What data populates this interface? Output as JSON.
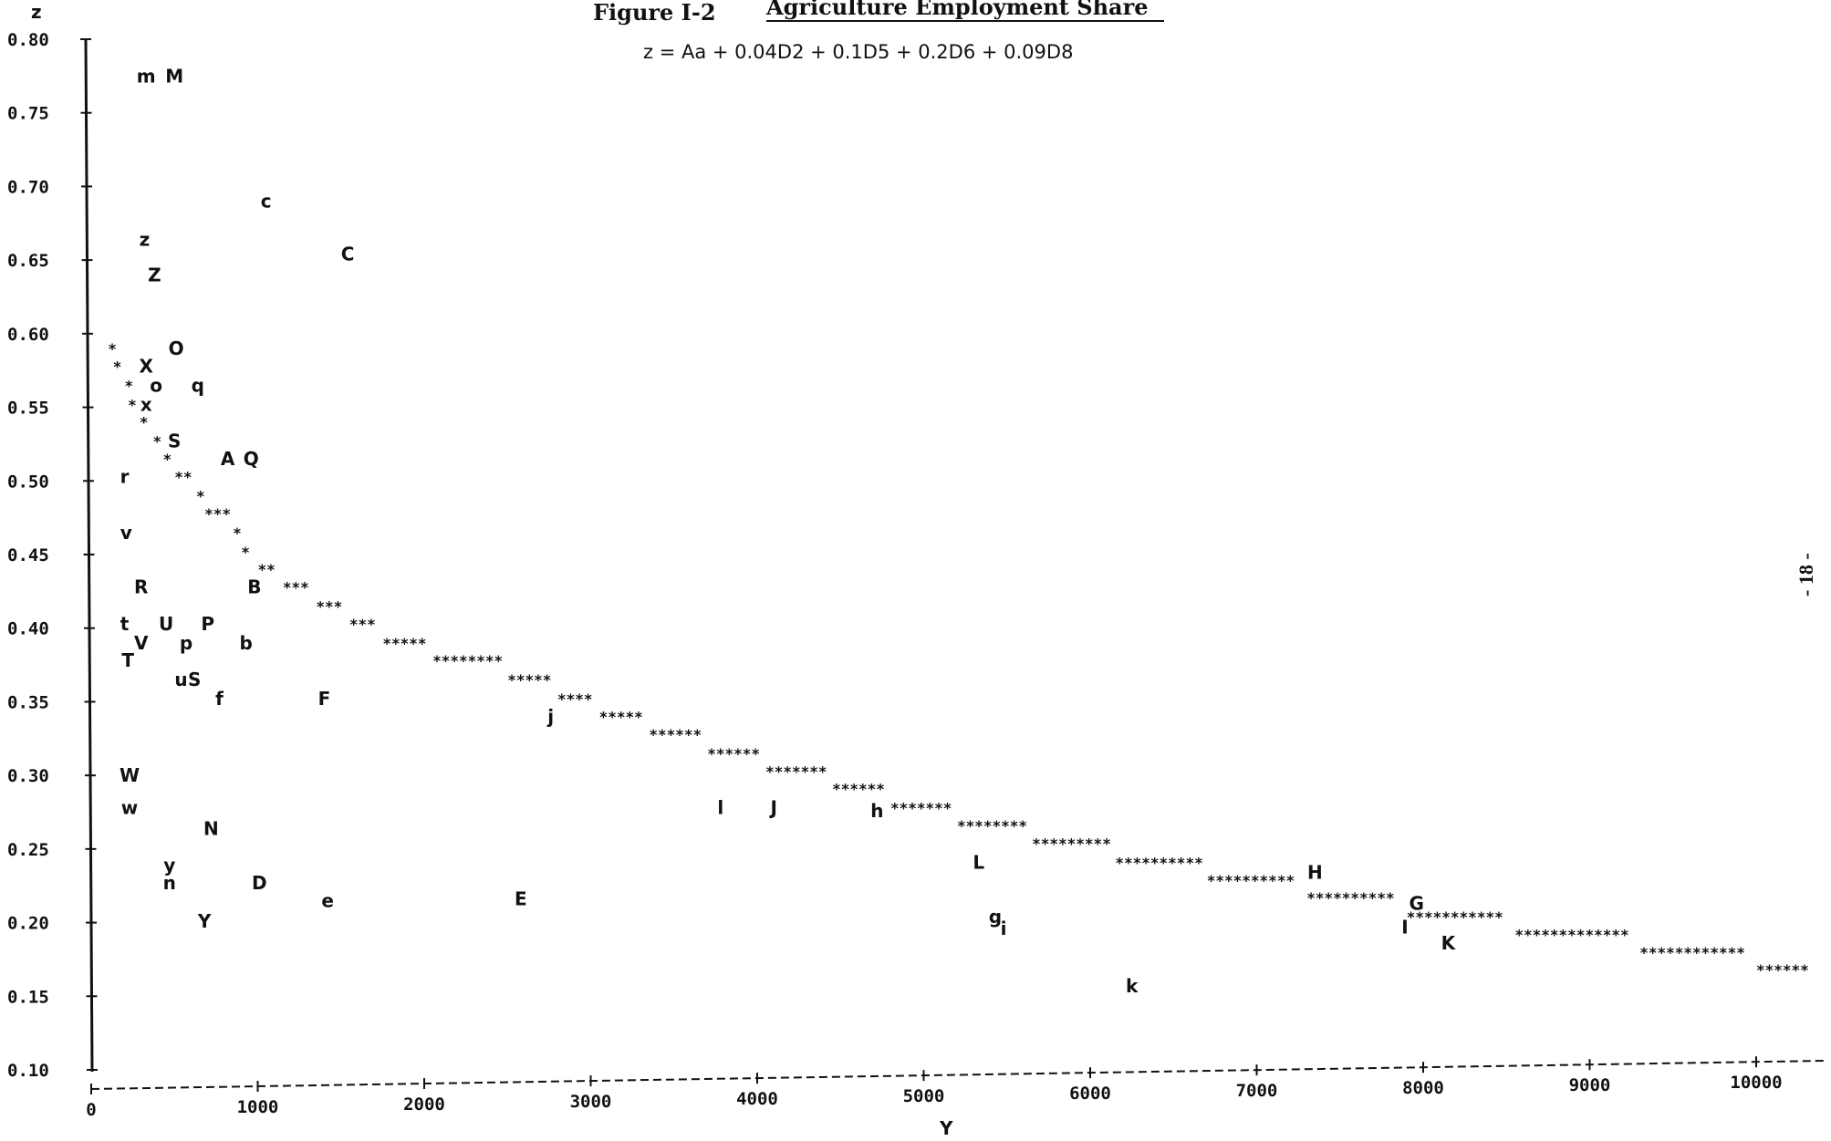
{
  "figure": {
    "title_prefix": "Figure I-2",
    "title_main": "Agriculture Employment Share",
    "equation": "z = Aa + 0.04D2 + 0.1D5 + 0.2D6 + 0.09D8",
    "page_number": "- 18 -"
  },
  "chart_data": {
    "type": "scatter",
    "title": "Agriculture Employment Share",
    "subtitle": "z = Aa + 0.04D2 + 0.1D5 + 0.2D6 + 0.09D8",
    "xlabel": "Y",
    "ylabel": "z",
    "xlim": [
      0,
      10000
    ],
    "ylim": [
      0.1,
      0.8
    ],
    "grid": false,
    "x_ticks": [
      0,
      1000,
      2000,
      3000,
      4000,
      5000,
      6000,
      7000,
      8000,
      9000,
      10000
    ],
    "x_tick_labels": [
      "0",
      "1000",
      "2000",
      "3000",
      "4000",
      "5000",
      "6000",
      "7000",
      "8000",
      "9000",
      "10000"
    ],
    "y_ticks": [
      0.1,
      0.15,
      0.2,
      0.25,
      0.3,
      0.35,
      0.4,
      0.45,
      0.5,
      0.55,
      0.6,
      0.65,
      0.7,
      0.75,
      0.8
    ],
    "y_tick_labels": [
      "0.10",
      "0.15",
      "0.20",
      "0.25",
      "0.30",
      "0.35",
      "0.40",
      "0.45",
      "0.50",
      "0.55",
      "0.60",
      "0.65",
      "0.70",
      "0.75",
      "0.80"
    ],
    "fitted_curve": {
      "marker": "*",
      "points": [
        [
          100,
          0.59
        ],
        [
          130,
          0.578
        ],
        [
          200,
          0.565
        ],
        [
          220,
          0.552
        ],
        [
          290,
          0.54
        ],
        [
          370,
          0.527
        ],
        [
          430,
          0.515
        ],
        [
          500,
          0.503
        ],
        [
          630,
          0.49
        ],
        [
          680,
          0.478
        ],
        [
          850,
          0.465
        ],
        [
          900,
          0.452
        ],
        [
          1000,
          0.44
        ],
        [
          1150,
          0.428
        ],
        [
          1350,
          0.415
        ],
        [
          1550,
          0.403
        ],
        [
          1750,
          0.39
        ],
        [
          2050,
          0.378
        ],
        [
          2500,
          0.365
        ],
        [
          2800,
          0.352
        ],
        [
          3050,
          0.34
        ],
        [
          3350,
          0.328
        ],
        [
          3700,
          0.315
        ],
        [
          4050,
          0.303
        ],
        [
          4450,
          0.291
        ],
        [
          4800,
          0.278
        ],
        [
          5200,
          0.266
        ],
        [
          5650,
          0.254
        ],
        [
          6150,
          0.241
        ],
        [
          6700,
          0.229
        ],
        [
          7300,
          0.217
        ],
        [
          7900,
          0.204
        ],
        [
          8550,
          0.192
        ],
        [
          9300,
          0.18
        ],
        [
          10000,
          0.168
        ]
      ]
    },
    "points": [
      {
        "label": "m",
        "x": 330,
        "y": 0.775
      },
      {
        "label": "M",
        "x": 500,
        "y": 0.775
      },
      {
        "label": "c",
        "x": 1050,
        "y": 0.69
      },
      {
        "label": "C",
        "x": 1540,
        "y": 0.654
      },
      {
        "label": "z",
        "x": 320,
        "y": 0.664
      },
      {
        "label": "Z",
        "x": 380,
        "y": 0.64
      },
      {
        "label": "O",
        "x": 510,
        "y": 0.59
      },
      {
        "label": "X",
        "x": 330,
        "y": 0.578
      },
      {
        "label": "o",
        "x": 390,
        "y": 0.565
      },
      {
        "label": "q",
        "x": 640,
        "y": 0.565
      },
      {
        "label": "x",
        "x": 330,
        "y": 0.552
      },
      {
        "label": "S",
        "x": 500,
        "y": 0.527
      },
      {
        "label": "A",
        "x": 820,
        "y": 0.515
      },
      {
        "label": "Q",
        "x": 960,
        "y": 0.515
      },
      {
        "label": "r",
        "x": 200,
        "y": 0.503
      },
      {
        "label": "v",
        "x": 210,
        "y": 0.465
      },
      {
        "label": "R",
        "x": 300,
        "y": 0.428
      },
      {
        "label": "B",
        "x": 980,
        "y": 0.428
      },
      {
        "label": "t",
        "x": 200,
        "y": 0.403
      },
      {
        "label": "U",
        "x": 450,
        "y": 0.403
      },
      {
        "label": "P",
        "x": 700,
        "y": 0.403
      },
      {
        "label": "V",
        "x": 300,
        "y": 0.39
      },
      {
        "label": "p",
        "x": 570,
        "y": 0.39
      },
      {
        "label": "b",
        "x": 930,
        "y": 0.39
      },
      {
        "label": "T",
        "x": 220,
        "y": 0.378
      },
      {
        "label": "u",
        "x": 540,
        "y": 0.365
      },
      {
        "label": "S",
        "x": 620,
        "y": 0.365
      },
      {
        "label": "f",
        "x": 770,
        "y": 0.352
      },
      {
        "label": "F",
        "x": 1400,
        "y": 0.352
      },
      {
        "label": "j",
        "x": 2760,
        "y": 0.34
      },
      {
        "label": "W",
        "x": 230,
        "y": 0.3
      },
      {
        "label": "w",
        "x": 230,
        "y": 0.278
      },
      {
        "label": "l",
        "x": 3780,
        "y": 0.278
      },
      {
        "label": "J",
        "x": 4100,
        "y": 0.278
      },
      {
        "label": "h",
        "x": 4720,
        "y": 0.276
      },
      {
        "label": "N",
        "x": 720,
        "y": 0.264
      },
      {
        "label": "L",
        "x": 5330,
        "y": 0.241
      },
      {
        "label": "y",
        "x": 470,
        "y": 0.239
      },
      {
        "label": "n",
        "x": 470,
        "y": 0.227
      },
      {
        "label": "D",
        "x": 1010,
        "y": 0.227
      },
      {
        "label": "H",
        "x": 7350,
        "y": 0.234
      },
      {
        "label": "e",
        "x": 1420,
        "y": 0.215
      },
      {
        "label": "E",
        "x": 2580,
        "y": 0.216
      },
      {
        "label": "G",
        "x": 7960,
        "y": 0.213
      },
      {
        "label": "g",
        "x": 5430,
        "y": 0.204
      },
      {
        "label": "i",
        "x": 5480,
        "y": 0.196
      },
      {
        "label": "Y",
        "x": 680,
        "y": 0.201
      },
      {
        "label": "I",
        "x": 7890,
        "y": 0.197
      },
      {
        "label": "K",
        "x": 8150,
        "y": 0.186
      },
      {
        "label": "k",
        "x": 6250,
        "y": 0.157
      }
    ]
  }
}
